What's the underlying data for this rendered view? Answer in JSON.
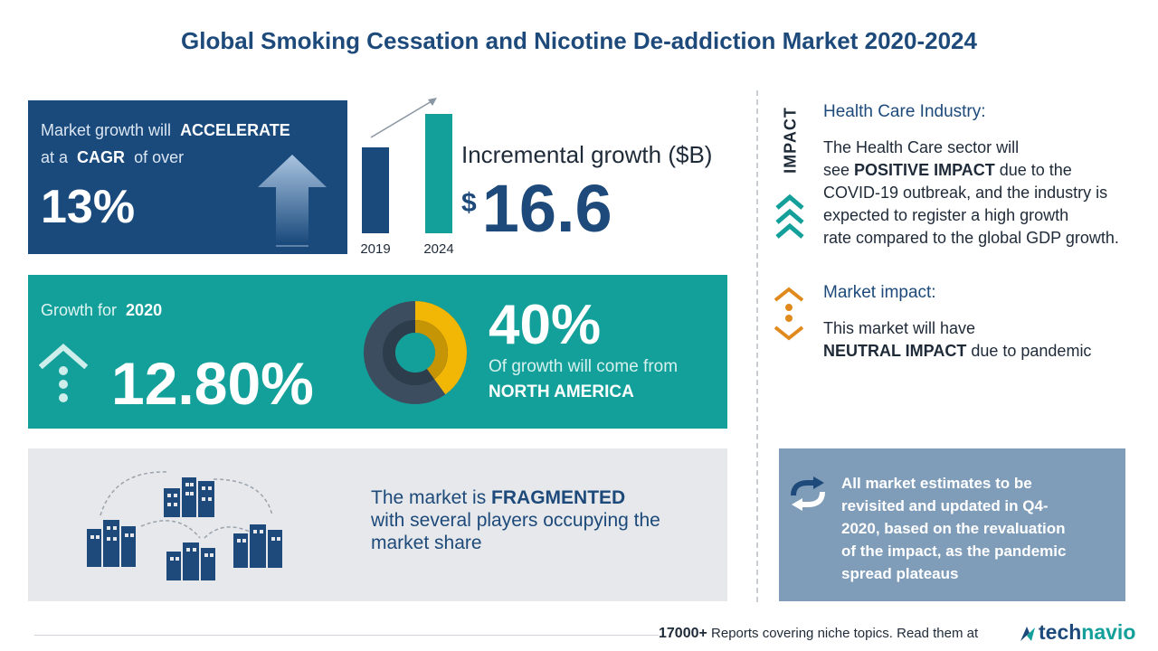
{
  "title": "Global Smoking Cessation and Nicotine De-addiction Market 2020-2024",
  "cagr": {
    "line1_prefix": "Market growth will",
    "line1_emph": "ACCELERATE",
    "line2_prefix": "at a",
    "line2_emph": "CAGR",
    "line2_suffix": "of over",
    "value": "13%"
  },
  "incremental": {
    "label": "Incremental growth ($B)",
    "currency": "$",
    "value": "16.6"
  },
  "chart_data": {
    "type": "bar",
    "categories": [
      "2019",
      "2024"
    ],
    "values": [
      0.72,
      1.0
    ],
    "xlabel": "",
    "ylabel": ""
  },
  "growth": {
    "label_prefix": "Growth for",
    "label_year": "2020",
    "value": "12.80%"
  },
  "region_share": {
    "value": "40%",
    "text": "Of growth will come from",
    "region": "NORTH AMERICA",
    "fraction": 0.4
  },
  "fragmented": {
    "line1_prefix": "The market is",
    "line1_emph": "FRAGMENTED",
    "line2": "with several players occupying the",
    "line3": "market share"
  },
  "impact_label": "IMPACT",
  "health_care": {
    "title": "Health Care Industry:",
    "line1": "The Health Care sector will",
    "line2_prefix": "see",
    "line2_emph": "POSITIVE IMPACT",
    "line2_suffix": "due to the",
    "line3": "COVID-19 outbreak, and the industry is",
    "line4": "expected to register a high growth",
    "line5": "rate compared to the global GDP growth."
  },
  "market_impact": {
    "title": "Market impact:",
    "line1": "This market will have",
    "line2_emph": "NEUTRAL IMPACT",
    "line2_suffix": "due to pandemic"
  },
  "note": {
    "line1": "All market estimates to be",
    "line2": "revisited and updated in Q4-",
    "line3": "2020, based on the revaluation",
    "line4": "of the impact, as the pandemic",
    "line5": "spread plateaus"
  },
  "footer": {
    "count": "17000+",
    "text": "Reports covering niche topics. Read them at",
    "brand_a": "tech",
    "brand_b": "navio"
  },
  "colors": {
    "navy": "#1a4a7c",
    "teal": "#14a09a",
    "gold": "#f2b705",
    "orange": "#e08a1e",
    "slate": "#7f9cb9"
  }
}
